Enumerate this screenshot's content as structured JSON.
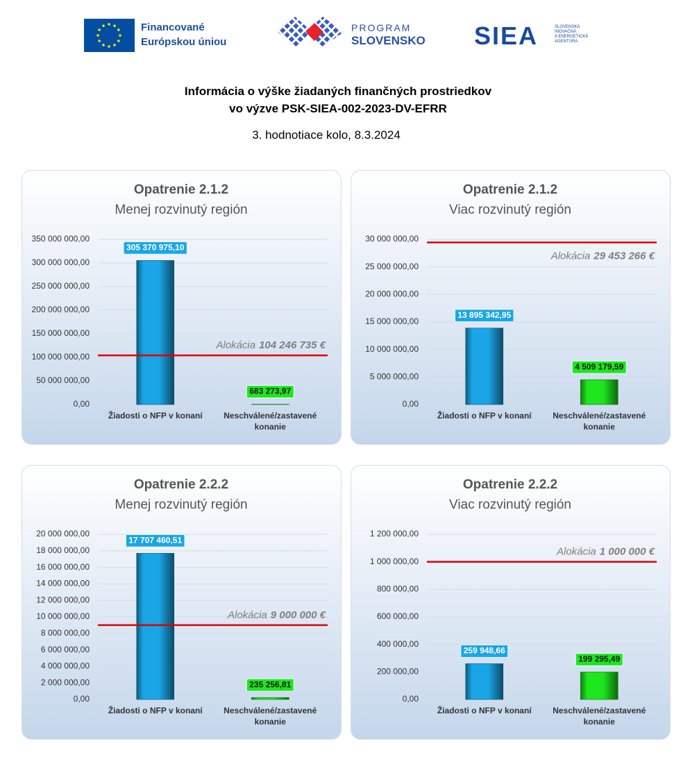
{
  "header": {
    "eu_logo": [
      "Financované",
      "Európskou úniou"
    ],
    "program_logo": [
      "PROGRAM",
      "SLOVENSKO"
    ],
    "siea_logo": {
      "name": "SIEA",
      "full_name": [
        "SLOVENSKÁ",
        "INOVAČNÁ",
        "A ENERGETICKÁ",
        "AGENTÚRA"
      ]
    },
    "title": [
      "Informácia o výške žiadaných finančných prostriedkov",
      "vo výzve PSK-SIEA-002-2023-DV-EFRR"
    ],
    "subtitle": "3. hodnotiace kolo, 8.3.2024"
  },
  "chart_data": [
    {
      "type": "bar",
      "title": "Opatrenie 2.1.2",
      "subtitle": "Menej rozvinutý región",
      "categories": [
        "Žiadosti o NFP v konaní",
        "Neschválené/zastavené konanie"
      ],
      "values": [
        305370975.1,
        683273.97
      ],
      "value_labels": [
        "305 370 975,10",
        "683 273,97"
      ],
      "colors": [
        "#1aa6e6",
        "#1ee61e"
      ],
      "label_text_colors": [
        "#ffffff",
        "#1a1a1a"
      ],
      "ylim": [
        0,
        350000000
      ],
      "yticks": [
        {
          "value": 0,
          "label": "0,00"
        },
        {
          "value": 50000000,
          "label": "50 000 000,00"
        },
        {
          "value": 100000000,
          "label": "100 000 000,00"
        },
        {
          "value": 150000000,
          "label": "150 000 000,00"
        },
        {
          "value": 200000000,
          "label": "200 000 000,00"
        },
        {
          "value": 250000000,
          "label": "250 000 000,00"
        },
        {
          "value": 300000000,
          "label": "300 000 000,00"
        },
        {
          "value": 350000000,
          "label": "350 000 000,00"
        }
      ],
      "grid": true,
      "allocation": {
        "label": "Alokácia",
        "value": 104246735,
        "value_label": "104 246 735 €",
        "color": "#e00000"
      }
    },
    {
      "type": "bar",
      "title": "Opatrenie 2.1.2",
      "subtitle": "Viac rozvinutý región",
      "categories": [
        "Žiadosti o NFP v konaní",
        "Neschválené/zastavené konanie"
      ],
      "values": [
        13895342.95,
        4509179.59
      ],
      "value_labels": [
        "13 895 342,95",
        "4 509 179,59"
      ],
      "colors": [
        "#1aa6e6",
        "#1ee61e"
      ],
      "label_text_colors": [
        "#ffffff",
        "#1a1a1a"
      ],
      "ylim": [
        0,
        30000000
      ],
      "yticks": [
        {
          "value": 0,
          "label": "0,00"
        },
        {
          "value": 5000000,
          "label": "5 000 000,00"
        },
        {
          "value": 10000000,
          "label": "10 000 000,00"
        },
        {
          "value": 15000000,
          "label": "15 000 000,00"
        },
        {
          "value": 20000000,
          "label": "20 000 000,00"
        },
        {
          "value": 25000000,
          "label": "25 000 000,00"
        },
        {
          "value": 30000000,
          "label": "30 000 000,00"
        }
      ],
      "grid": true,
      "allocation": {
        "label": "Alokácia",
        "value": 29453266,
        "value_label": "29 453 266 €",
        "color": "#e00000"
      }
    },
    {
      "type": "bar",
      "title": "Opatrenie 2.2.2",
      "subtitle": "Menej rozvinutý región",
      "categories": [
        "Žiadosti o NFP v konaní",
        "Neschválené/zastavené konanie"
      ],
      "values": [
        17707460.51,
        235256.81
      ],
      "value_labels": [
        "17 707 460,51",
        "235 256,81"
      ],
      "colors": [
        "#1aa6e6",
        "#1ee61e"
      ],
      "label_text_colors": [
        "#ffffff",
        "#1a1a1a"
      ],
      "ylim": [
        0,
        20000000
      ],
      "yticks": [
        {
          "value": 0,
          "label": "0,00"
        },
        {
          "value": 2000000,
          "label": "2 000 000,00"
        },
        {
          "value": 4000000,
          "label": "4 000 000,00"
        },
        {
          "value": 6000000,
          "label": "6 000 000,00"
        },
        {
          "value": 8000000,
          "label": "8 000 000,00"
        },
        {
          "value": 10000000,
          "label": "10 000 000,00"
        },
        {
          "value": 12000000,
          "label": "12 000 000,00"
        },
        {
          "value": 14000000,
          "label": "14 000 000,00"
        },
        {
          "value": 16000000,
          "label": "16 000 000,00"
        },
        {
          "value": 18000000,
          "label": "18 000 000,00"
        },
        {
          "value": 20000000,
          "label": "20 000 000,00"
        }
      ],
      "grid": true,
      "allocation": {
        "label": "Alokácia",
        "value": 9000000,
        "value_label": "9 000 000 €",
        "color": "#e00000"
      }
    },
    {
      "type": "bar",
      "title": "Opatrenie 2.2.2",
      "subtitle": "Viac rozvinutý región",
      "categories": [
        "Žiadosti o NFP v konaní",
        "Neschválené/zastavené konanie"
      ],
      "values": [
        259948.66,
        199295.49
      ],
      "value_labels": [
        "259 948,66",
        "199 295,49"
      ],
      "colors": [
        "#1aa6e6",
        "#1ee61e"
      ],
      "label_text_colors": [
        "#ffffff",
        "#1a1a1a"
      ],
      "ylim": [
        0,
        1200000
      ],
      "yticks": [
        {
          "value": 0,
          "label": "0,00"
        },
        {
          "value": 200000,
          "label": "200 000,00"
        },
        {
          "value": 400000,
          "label": "400 000,00"
        },
        {
          "value": 600000,
          "label": "600 000,00"
        },
        {
          "value": 800000,
          "label": "800 000,00"
        },
        {
          "value": 1000000,
          "label": "1 000 000,00"
        },
        {
          "value": 1200000,
          "label": "1 200 000,00"
        }
      ],
      "grid": true,
      "allocation": {
        "label": "Alokácia",
        "value": 1000000,
        "value_label": "1 000 000 €",
        "color": "#e00000"
      }
    }
  ]
}
